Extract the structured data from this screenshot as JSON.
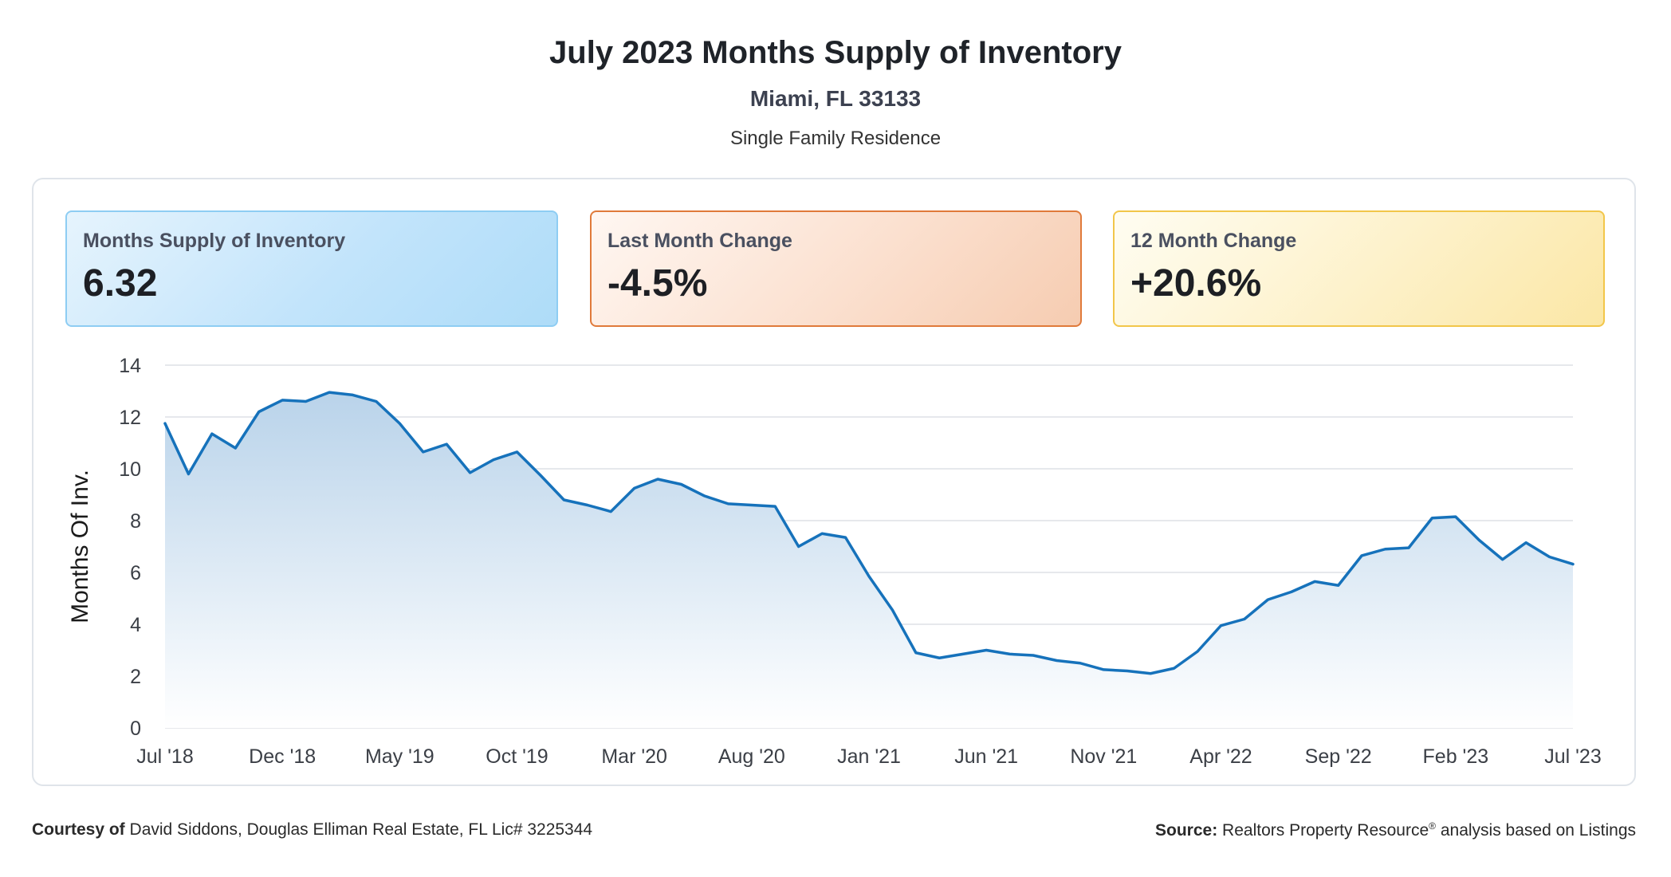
{
  "header": {
    "title": "July 2023 Months Supply of Inventory",
    "location": "Miami, FL 33133",
    "property_type": "Single Family Residence"
  },
  "cards": [
    {
      "label": "Months Supply of Inventory",
      "value": "6.32"
    },
    {
      "label": "Last Month Change",
      "value": "-4.5%"
    },
    {
      "label": "12 Month Change",
      "value": "+20.6%"
    }
  ],
  "footer": {
    "courtesy_label": "Courtesy of",
    "courtesy_text": "David Siddons, Douglas Elliman Real Estate, FL Lic# 3225344",
    "source_label": "Source:",
    "source_text_1": "Realtors Property Resource",
    "source_mark": "®",
    "source_text_2": "analysis based on Listings"
  },
  "colors": {
    "line": "#1672bb",
    "area_top": "#b9d3ea",
    "area_bottom": "#ffffff",
    "grid": "#dde1e6"
  },
  "chart_data": {
    "type": "area",
    "ylabel": "Months Of Inv.",
    "ylim": [
      0,
      14
    ],
    "yticks": [
      0,
      2,
      4,
      6,
      8,
      10,
      12,
      14
    ],
    "grid": true,
    "xtick_labels": [
      "Jul '18",
      "Dec '18",
      "May '19",
      "Oct '19",
      "Mar '20",
      "Aug '20",
      "Jan '21",
      "Jun '21",
      "Nov '21",
      "Apr '22",
      "Sep '22",
      "Feb '23",
      "Jul '23"
    ],
    "x_start": "2018-07",
    "x_end": "2023-07",
    "series": [
      {
        "values": [
          11.75,
          9.8,
          11.35,
          10.8,
          12.2,
          12.65,
          12.6,
          12.95,
          12.85,
          12.6,
          11.75,
          10.65,
          10.95,
          9.85,
          10.35,
          10.65,
          9.75,
          8.8,
          8.6,
          8.35,
          9.25,
          9.6,
          9.4,
          8.95,
          8.65,
          8.6,
          8.55,
          7.0,
          7.5,
          7.35,
          5.85,
          4.55,
          2.9,
          2.7,
          2.85,
          3.0,
          2.85,
          2.8,
          2.6,
          2.5,
          2.25,
          2.2,
          2.1,
          2.3,
          2.95,
          3.95,
          4.2,
          4.95,
          5.25,
          5.65,
          5.5,
          6.65,
          6.9,
          6.95,
          8.1,
          8.15,
          7.25,
          6.5,
          7.15,
          6.6,
          6.32
        ]
      }
    ]
  }
}
